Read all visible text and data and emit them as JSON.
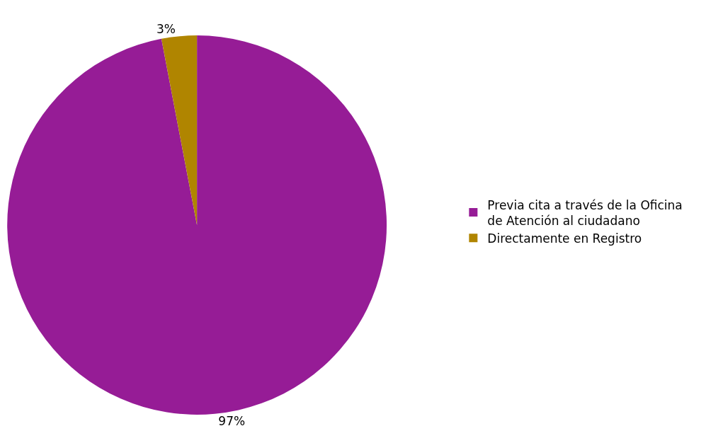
{
  "chart_data": {
    "type": "pie",
    "categories": [
      "Previa cita a través de la Oficina de Atención al ciudadano",
      "Directamente en Registro"
    ],
    "values": [
      97,
      3
    ],
    "colors": [
      "#961c96",
      "#b08500"
    ],
    "value_labels": [
      "97%",
      "3%"
    ],
    "legend": "right"
  }
}
